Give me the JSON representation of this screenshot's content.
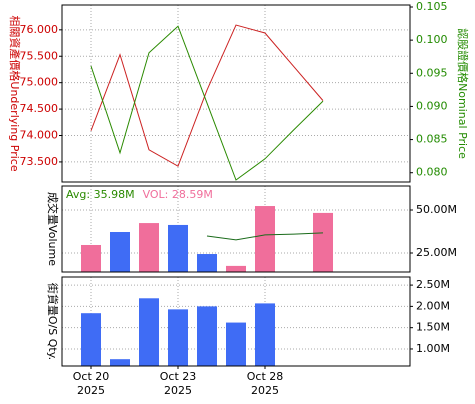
{
  "chart_data": [
    {
      "type": "line",
      "ylabel": "相關資產價格Underlying Price",
      "y2label": "認股證價格Nominal Price",
      "ylim": [
        73.12,
        76.47
      ],
      "yticks": [
        {
          "value": 73.5,
          "label": "73.500"
        },
        {
          "value": 74,
          "label": "74.000"
        },
        {
          "value": 74.5,
          "label": "74.500"
        },
        {
          "value": 75,
          "label": "75.000"
        },
        {
          "value": 75.5,
          "label": "75.500"
        },
        {
          "value": 76,
          "label": "76.000"
        }
      ],
      "y2lim": [
        0.0786,
        0.1053
      ],
      "y2ticks": [
        {
          "value": 0.08,
          "label": "0.080"
        },
        {
          "value": 0.085,
          "label": "0.085"
        },
        {
          "value": 0.09,
          "label": "0.090"
        },
        {
          "value": 0.095,
          "label": "0.095"
        },
        {
          "value": 0.1,
          "label": "0.100"
        },
        {
          "value": 0.105,
          "label": "0.105"
        }
      ],
      "ycolor": "#cc0000",
      "y2color": "#228b00",
      "series": [
        {
          "color": "#cc2222",
          "values": [
            74.09,
            75.53,
            73.73,
            73.42,
            74.86,
            76.09,
            75.94,
            75.3,
            74.66
          ]
        },
        {
          "color": "#2a8a00",
          "axis": "y2",
          "values": [
            0.0961,
            0.083,
            0.0981,
            0.1021,
            0.0905,
            0.0789,
            0.0821,
            0.0865,
            0.0908
          ]
        }
      ]
    },
    {
      "type": "bar",
      "ylabel": "成交量Volume",
      "legend": [
        {
          "text": "Avg: 35.98M",
          "color": "#2a8a00"
        },
        {
          "text": "VOL: 28.59M",
          "color": "#f06e9b"
        }
      ],
      "ylim": [
        13.95,
        63.95
      ],
      "yticks": [
        {
          "value": 25,
          "label": "25.00M"
        },
        {
          "value": 50,
          "label": "50.00M"
        }
      ],
      "values": [
        29.65,
        37.2,
        42.4,
        41.3,
        24.4,
        17.5,
        52.3,
        null,
        48.3
      ],
      "bar_colors": [
        "#f06e9b",
        "#3f6cf5",
        "#f06e9b",
        "#3f6cf5",
        "#3f6cf5",
        "#f06e9b",
        "#f06e9b",
        null,
        "#f06e9b"
      ],
      "avg_values": [
        null,
        null,
        null,
        null,
        34.9,
        32.6,
        35.5,
        36.0,
        36.7
      ],
      "avg_color": "#1a6b1a"
    },
    {
      "type": "bar",
      "ylabel": "街貨量O/S Qty.",
      "ylim": [
        0.6,
        2.69
      ],
      "yticks": [
        {
          "value": 1,
          "label": "1.00M"
        },
        {
          "value": 1.5,
          "label": "1.50M"
        },
        {
          "value": 2,
          "label": "2.00M"
        },
        {
          "value": 2.5,
          "label": "2.50M"
        }
      ],
      "values": [
        1.84,
        0.76,
        2.19,
        1.93,
        2.0,
        1.62,
        2.07,
        null,
        null
      ],
      "color": "#3f6cf5",
      "categories": [
        "Oct 20",
        null,
        null,
        "Oct 23",
        null,
        null,
        "Oct 28",
        null,
        null
      ],
      "category_years": [
        "2025",
        null,
        null,
        "2025",
        null,
        null,
        "2025",
        null,
        null
      ]
    }
  ]
}
